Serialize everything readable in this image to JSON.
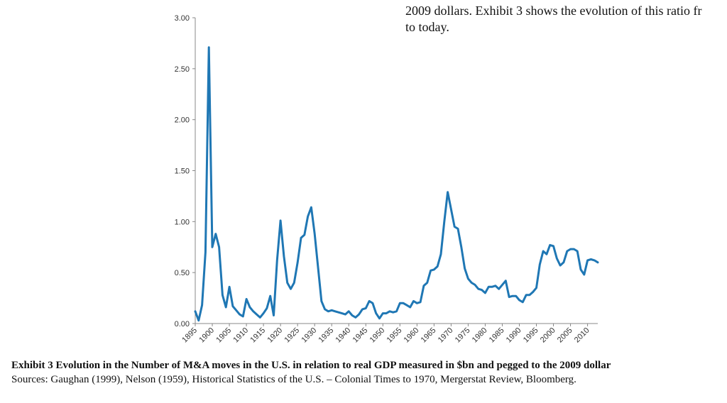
{
  "document": {
    "top_text": [
      "2009 dollars. Exhibit 3 shows the evolution of this ratio fr",
      "to today."
    ],
    "caption_title": "Exhibit 3 Evolution in the Number of M&A moves in the U.S. in relation to real GDP measured in $bn and pegged to the 2009 dollar",
    "caption_sources": "Sources: Gaughan (1999), Nelson (1959), Historical Statistics of the U.S. – Colonial Times to 1970, Mergerstat Review, Bloomberg."
  },
  "chart_data": {
    "type": "line",
    "title": "",
    "xlabel": "",
    "ylabel": "",
    "xlim": [
      1895,
      2013
    ],
    "ylim": [
      0,
      3.0
    ],
    "yticks": [
      0.0,
      0.5,
      1.0,
      1.5,
      2.0,
      2.5,
      3.0
    ],
    "ytick_labels": [
      "0.00",
      "0.50",
      "1.00",
      "1.50",
      "2.00",
      "2.50",
      "3.00"
    ],
    "xticks": [
      1895,
      1900,
      1905,
      1910,
      1915,
      1920,
      1925,
      1930,
      1935,
      1940,
      1945,
      1950,
      1955,
      1960,
      1965,
      1970,
      1975,
      1980,
      1985,
      1990,
      1995,
      2000,
      2005,
      2010
    ],
    "grid": false,
    "legend": "none",
    "line_color": "#1f77b4",
    "series": [
      {
        "x": [
          1895,
          1896,
          1897,
          1898,
          1899,
          1900,
          1901,
          1902,
          1903,
          1904,
          1905,
          1906,
          1907,
          1908,
          1909,
          1910,
          1911,
          1912,
          1913,
          1914,
          1915,
          1916,
          1917,
          1918,
          1919,
          1920,
          1921,
          1922,
          1923,
          1924,
          1925,
          1926,
          1927,
          1928,
          1929,
          1930,
          1931,
          1932,
          1933,
          1934,
          1935,
          1936,
          1937,
          1938,
          1939,
          1940,
          1941,
          1942,
          1943,
          1944,
          1945,
          1946,
          1947,
          1948,
          1949,
          1950,
          1951,
          1952,
          1953,
          1954,
          1955,
          1956,
          1957,
          1958,
          1959,
          1960,
          1961,
          1962,
          1963,
          1964,
          1965,
          1966,
          1967,
          1968,
          1969,
          1970,
          1971,
          1972,
          1973,
          1974,
          1975,
          1976,
          1977,
          1978,
          1979,
          1980,
          1981,
          1982,
          1983,
          1984,
          1985,
          1986,
          1987,
          1988,
          1989,
          1990,
          1991,
          1992,
          1993,
          1994,
          1995,
          1996,
          1997,
          1998,
          1999,
          2000,
          2001,
          2002,
          2003,
          2004,
          2005,
          2006,
          2007,
          2008,
          2009,
          2010,
          2011,
          2012,
          2013
        ],
        "values": [
          0.12,
          0.03,
          0.18,
          0.7,
          2.71,
          0.75,
          0.88,
          0.75,
          0.28,
          0.16,
          0.36,
          0.17,
          0.13,
          0.09,
          0.07,
          0.24,
          0.16,
          0.12,
          0.09,
          0.06,
          0.1,
          0.15,
          0.27,
          0.08,
          0.62,
          1.01,
          0.66,
          0.4,
          0.34,
          0.4,
          0.6,
          0.84,
          0.87,
          1.05,
          1.14,
          0.88,
          0.55,
          0.22,
          0.14,
          0.12,
          0.13,
          0.12,
          0.11,
          0.1,
          0.09,
          0.12,
          0.08,
          0.06,
          0.09,
          0.14,
          0.15,
          0.22,
          0.2,
          0.1,
          0.05,
          0.1,
          0.1,
          0.12,
          0.11,
          0.12,
          0.2,
          0.2,
          0.18,
          0.16,
          0.22,
          0.2,
          0.21,
          0.37,
          0.4,
          0.52,
          0.53,
          0.56,
          0.68,
          1.0,
          1.29,
          1.12,
          0.95,
          0.93,
          0.75,
          0.54,
          0.44,
          0.4,
          0.38,
          0.34,
          0.33,
          0.3,
          0.36,
          0.36,
          0.37,
          0.34,
          0.38,
          0.42,
          0.26,
          0.27,
          0.27,
          0.23,
          0.21,
          0.28,
          0.28,
          0.31,
          0.35,
          0.58,
          0.71,
          0.68,
          0.77,
          0.76,
          0.64,
          0.57,
          0.6,
          0.71,
          0.73,
          0.73,
          0.71,
          0.53,
          0.48,
          0.62,
          0.63,
          0.62,
          0.6
        ]
      }
    ]
  }
}
